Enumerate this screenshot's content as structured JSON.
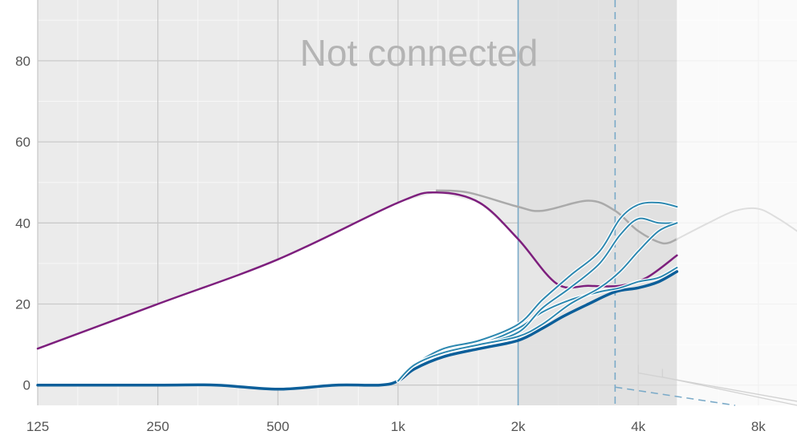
{
  "status_overlay": "Not connected",
  "chart_data": {
    "type": "line",
    "title": "",
    "xlabel": "",
    "ylabel": "",
    "x_scale": "log2",
    "xlim": [
      125,
      10000
    ],
    "ylim": [
      -5,
      95
    ],
    "x_ticks": [
      {
        "value": 125,
        "label": "125"
      },
      {
        "value": 250,
        "label": "250"
      },
      {
        "value": 500,
        "label": "500"
      },
      {
        "value": 1000,
        "label": "1k"
      },
      {
        "value": 2000,
        "label": "2k"
      },
      {
        "value": 4000,
        "label": "4k"
      },
      {
        "value": 8000,
        "label": "8k"
      }
    ],
    "y_ticks": [
      0,
      20,
      40,
      60,
      80
    ],
    "grid": true,
    "shaded_regions": [
      {
        "x": [
          2000,
          5000
        ],
        "fill": "#dcdcdc"
      }
    ],
    "reference_lines": [
      {
        "x": 2000,
        "style": "solid",
        "color": "#7aaac8"
      },
      {
        "x": 3500,
        "style": "dashed",
        "color": "#7aaac8"
      }
    ],
    "series": [
      {
        "name": "",
        "color": "#7d1f7d",
        "width": 2.5,
        "dash": "",
        "x": [
          125,
          250,
          500,
          1000,
          1250,
          1600,
          2000,
          2500,
          3000,
          3600,
          4200,
          5000
        ],
        "y": [
          9,
          20,
          31,
          45,
          47.5,
          45,
          36,
          25,
          24.5,
          24.5,
          26.5,
          32
        ]
      },
      {
        "name": "",
        "color": "#aaaaaa",
        "width": 2.5,
        "dash": "",
        "x": [
          1250,
          1500,
          2000,
          2300,
          3000,
          3500,
          4000,
          4600,
          5000
        ],
        "y": [
          48,
          47.5,
          44,
          43,
          45.5,
          43,
          38,
          35,
          36
        ]
      },
      {
        "name": "",
        "color": "#dedede",
        "width": 2,
        "dash": "",
        "x": [
          5000,
          6000,
          7000,
          8000,
          9000,
          10000
        ],
        "y": [
          36,
          40,
          43,
          43.5,
          41,
          38
        ]
      },
      {
        "name": "",
        "color": "#0c5f9a",
        "width": 3.5,
        "dash": "",
        "x": [
          125,
          250,
          350,
          500,
          700,
          900,
          1000,
          1100,
          1300,
          1600,
          2000,
          2300,
          2600,
          3000,
          3500,
          4000,
          4500,
          5000
        ],
        "y": [
          0,
          0,
          0,
          -1,
          0,
          0,
          1,
          4,
          7,
          9,
          11,
          14,
          17,
          20,
          23,
          24,
          25.5,
          28
        ]
      },
      {
        "name": "",
        "color": "#2d88b0",
        "width": 2,
        "dash": "",
        "x": [
          1000,
          1100,
          1300,
          1600,
          2000,
          2300,
          2700,
          3200,
          3600,
          4000,
          4500,
          5000
        ],
        "y": [
          1,
          5,
          8,
          10,
          14,
          18,
          21,
          23,
          24,
          25.5,
          26.5,
          29
        ]
      },
      {
        "name": "",
        "color": "#2d88b0",
        "width": 2,
        "dash": "",
        "x": [
          1000,
          1100,
          1300,
          1600,
          2000,
          2300,
          2700,
          3200,
          3600,
          4000,
          4500,
          5000
        ],
        "y": [
          1,
          5,
          9,
          11,
          15,
          21,
          27,
          33,
          41,
          44.5,
          45,
          44
        ]
      },
      {
        "name": "",
        "color": "#2d88b0",
        "width": 2,
        "dash": "",
        "x": [
          1000,
          1100,
          1300,
          1600,
          2000,
          2300,
          2700,
          3200,
          3600,
          4000,
          4500,
          5000
        ],
        "y": [
          1,
          5,
          8,
          10,
          13,
          19,
          24,
          30,
          37,
          41,
          40,
          40
        ]
      },
      {
        "name": "",
        "color": "#2d88b0",
        "width": 2,
        "dash": "",
        "x": [
          1000,
          1100,
          1300,
          1600,
          2000,
          2300,
          2700,
          3200,
          3600,
          4000,
          4500,
          5000
        ],
        "y": [
          1,
          5,
          8,
          10,
          12,
          15,
          20,
          24,
          28,
          33,
          38,
          40
        ]
      }
    ]
  }
}
